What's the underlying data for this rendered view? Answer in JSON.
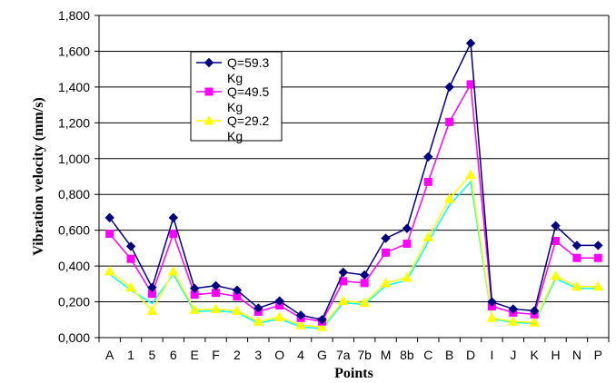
{
  "chart_data": {
    "type": "line",
    "title": "",
    "xlabel": "Points",
    "ylabel": "Vibration velocity (mm/s)",
    "ylim": [
      0,
      1800
    ],
    "yticks": [
      0,
      200,
      400,
      600,
      800,
      1000,
      1200,
      1400,
      1600,
      1800
    ],
    "ytick_labels": [
      "0,000",
      "0,200",
      "0,400",
      "0,600",
      "0,800",
      "1,000",
      "1,200",
      "1,400",
      "1,600",
      "1,800"
    ],
    "grid": true,
    "legend_position": "top-left",
    "categories": [
      "A",
      "1",
      "5",
      "6",
      "E",
      "F",
      "2",
      "3",
      "O",
      "4",
      "G",
      "7a",
      "7b",
      "M",
      "8b",
      "C",
      "B",
      "D",
      "I",
      "J",
      "K",
      "H",
      "N",
      "P"
    ],
    "series": [
      {
        "name": "Q=59.3 Kg",
        "legend_lines": [
          "Q=59.3",
          "Kg"
        ],
        "color": "#000080",
        "marker": "diamond",
        "values": [
          670,
          510,
          280,
          670,
          275,
          290,
          265,
          165,
          205,
          125,
          100,
          365,
          350,
          555,
          610,
          1010,
          1400,
          1645,
          200,
          160,
          150,
          625,
          515,
          515
        ]
      },
      {
        "name": "Q=49.5 Kg",
        "legend_lines": [
          "Q=49.5",
          "Kg"
        ],
        "color": "#ff00ff",
        "marker": "square",
        "values": [
          580,
          440,
          245,
          580,
          240,
          250,
          230,
          145,
          180,
          110,
          90,
          315,
          305,
          475,
          525,
          870,
          1205,
          1415,
          175,
          140,
          130,
          540,
          445,
          445
        ]
      },
      {
        "name": "Q=29.2 Kg",
        "legend_lines": [
          "Q=29.2",
          "Kg"
        ],
        "color": "#ffff00",
        "marker": "triangle",
        "values": [
          370,
          280,
          150,
          370,
          155,
          160,
          150,
          90,
          115,
          70,
          60,
          205,
          195,
          305,
          335,
          560,
          775,
          910,
          110,
          90,
          85,
          345,
          285,
          285
        ]
      },
      {
        "name": "",
        "color": "#00ffff",
        "marker": "none",
        "values": [
          355,
          265,
          190,
          355,
          145,
          150,
          140,
          80,
          105,
          60,
          50,
          195,
          185,
          290,
          320,
          535,
          740,
          870,
          105,
          85,
          80,
          330,
          275,
          275
        ]
      }
    ]
  }
}
